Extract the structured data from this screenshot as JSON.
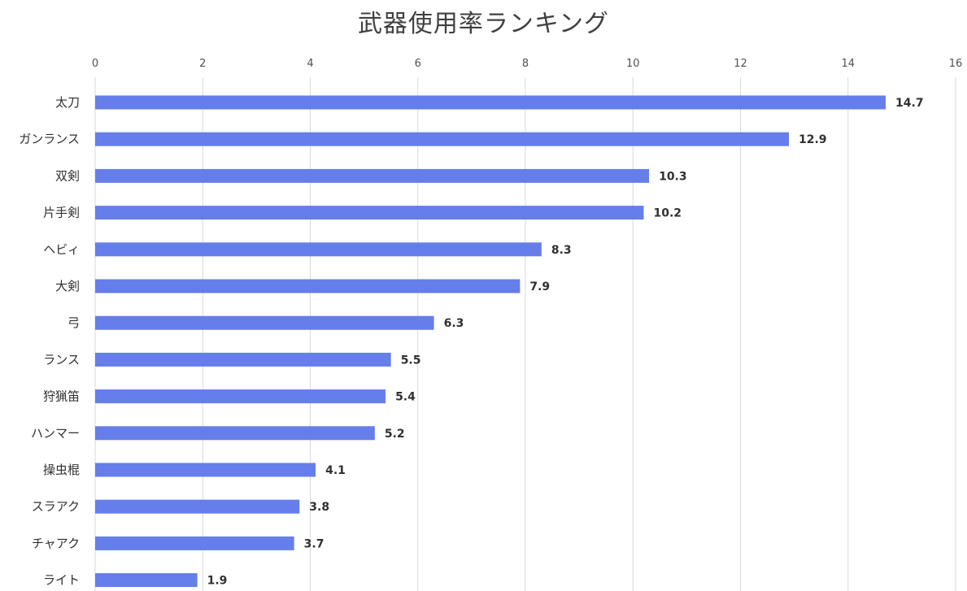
{
  "chart_data": {
    "type": "bar",
    "orientation": "horizontal",
    "title": "武器使用率ランキング",
    "categories": [
      "太刀",
      "ガンランス",
      "双剣",
      "片手剣",
      "ヘビィ",
      "大剣",
      "弓",
      "ランス",
      "狩猟笛",
      "ハンマー",
      "操虫棍",
      "スラアク",
      "チャアク",
      "ライト"
    ],
    "values": [
      14.7,
      12.9,
      10.3,
      10.2,
      8.3,
      7.9,
      6.3,
      5.5,
      5.4,
      5.2,
      4.1,
      3.8,
      3.7,
      1.9
    ],
    "xlim": [
      0,
      16
    ],
    "xticks": [
      "0",
      "2",
      "4",
      "6",
      "8",
      "10",
      "12",
      "14",
      "16"
    ],
    "x_axis_position": "top",
    "grid": true,
    "legend": "none",
    "bar_color": "#667eea",
    "data_labels": true
  }
}
